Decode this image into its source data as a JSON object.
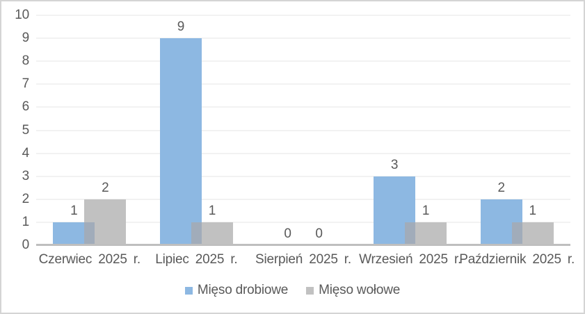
{
  "chart_data": {
    "type": "bar",
    "title": "",
    "xlabel": "",
    "ylabel": "",
    "categories": [
      "Czerwiec 2025 r.",
      "Lipiec 2025 r.",
      "Sierpień 2025 r.",
      "Wrzesień 2025 r.",
      "Październik 2025 r."
    ],
    "series": [
      {
        "name": "Mięso drobiowe",
        "values": [
          1,
          9,
          0,
          3,
          2
        ],
        "color": "#8DB8E2"
      },
      {
        "name": "Mięso wołowe",
        "values": [
          2,
          1,
          0,
          1,
          1
        ],
        "color": "#C1C1C1"
      }
    ],
    "overlap_color": "#A1ACBA",
    "ylim": [
      0,
      10
    ],
    "yticks": [
      0,
      1,
      2,
      3,
      4,
      5,
      6,
      7,
      8,
      9,
      10
    ],
    "grid": true,
    "value_labels": true,
    "legend_position": "bottom",
    "style": {
      "text_color": "#595959",
      "gridline_color": "#F2F2F2",
      "axis_line_color": "#BFBFBF",
      "border_color": "#D4D4D4",
      "background": "#FFFFFF"
    }
  }
}
